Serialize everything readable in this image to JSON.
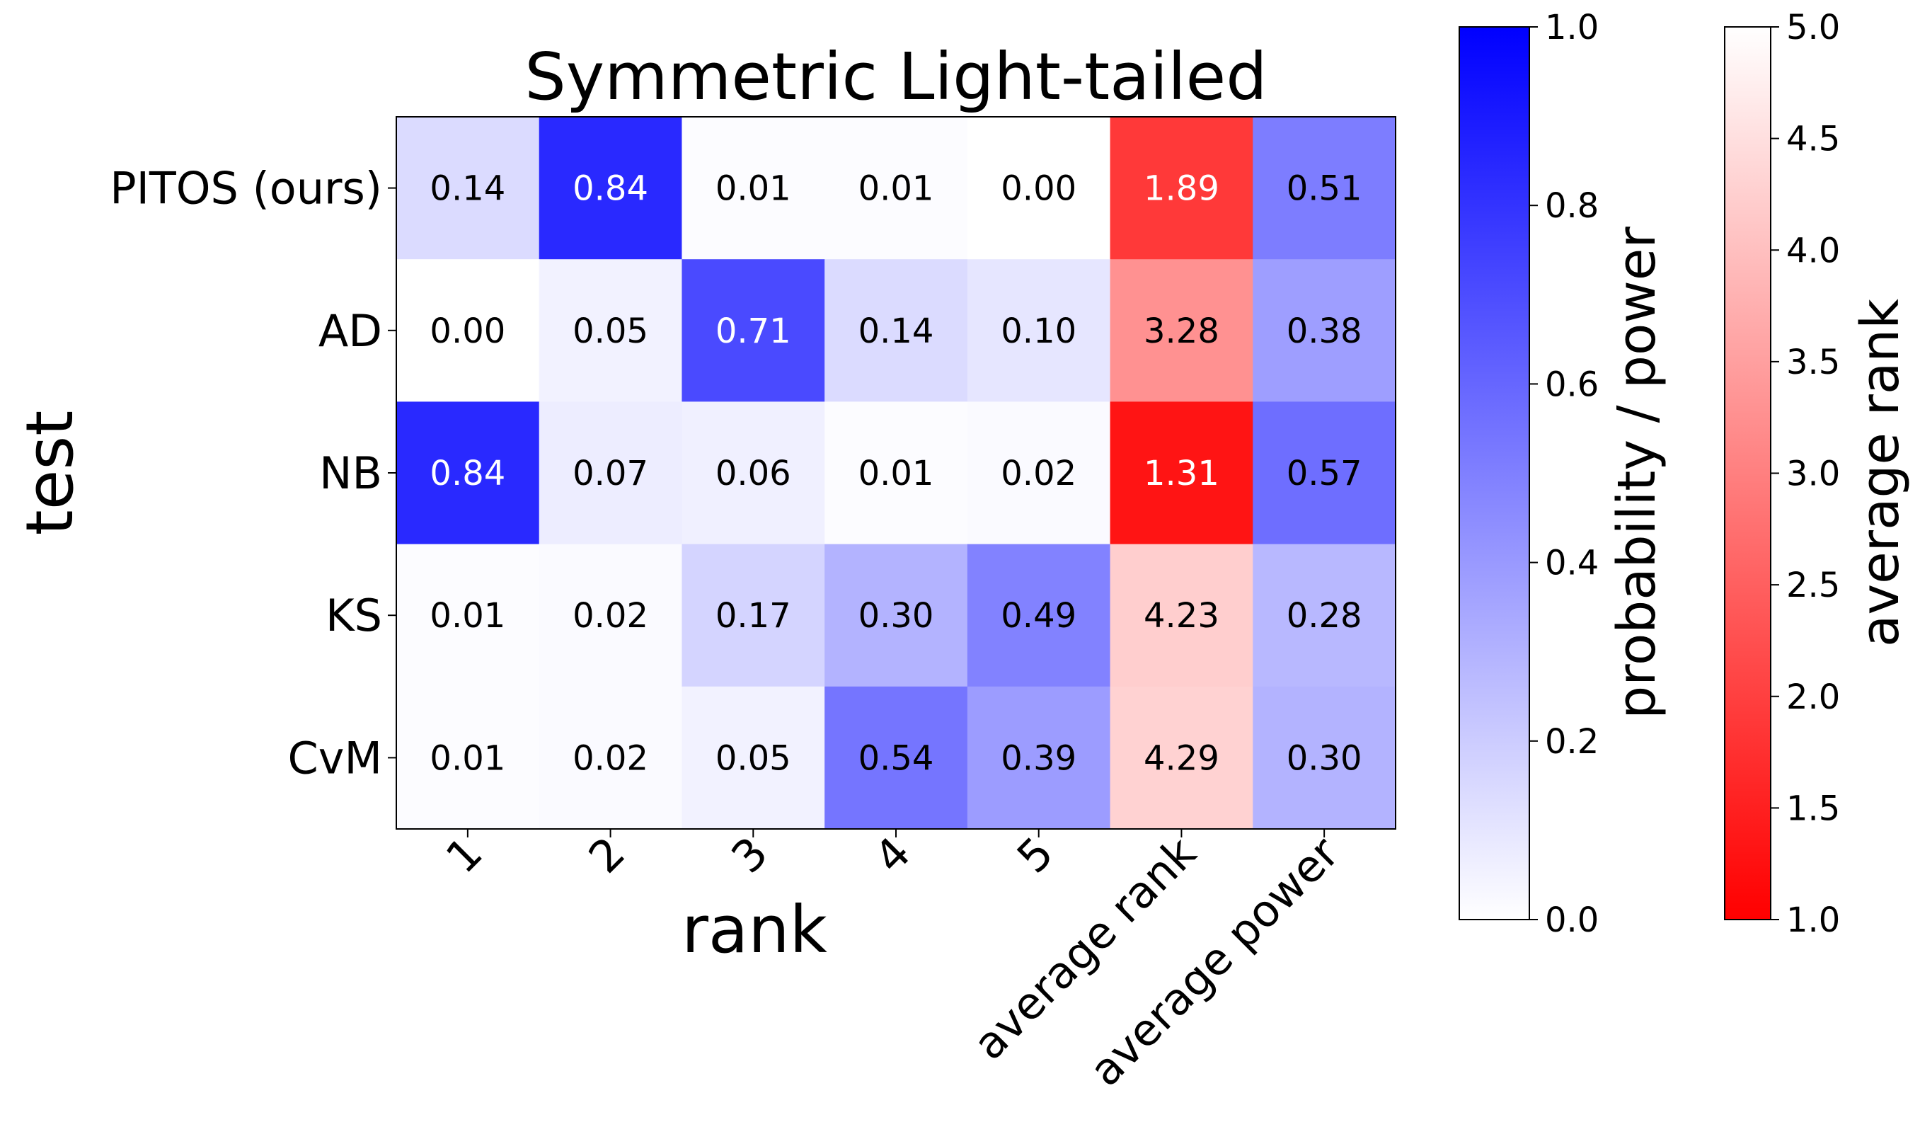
{
  "chart_data": {
    "type": "heatmap",
    "title": "Symmetric Light-tailed",
    "xlabel": "rank",
    "ylabel": "test",
    "columns": [
      "1",
      "2",
      "3",
      "4",
      "5",
      "average rank",
      "average power"
    ],
    "rows": [
      "PITOS (ours)",
      "AD",
      "NB",
      "KS",
      "CvM"
    ],
    "values": [
      [
        "0.14",
        "0.84",
        "0.01",
        "0.01",
        "0.00",
        "1.89",
        "0.51"
      ],
      [
        "0.00",
        "0.05",
        "0.71",
        "0.14",
        "0.10",
        "3.28",
        "0.38"
      ],
      [
        "0.84",
        "0.07",
        "0.06",
        "0.01",
        "0.02",
        "1.31",
        "0.57"
      ],
      [
        "0.01",
        "0.02",
        "0.17",
        "0.30",
        "0.49",
        "4.23",
        "0.28"
      ],
      [
        "0.01",
        "0.02",
        "0.05",
        "0.54",
        "0.39",
        "4.29",
        "0.30"
      ]
    ],
    "column_scale": [
      "blue",
      "blue",
      "blue",
      "blue",
      "blue",
      "red",
      "blue"
    ],
    "colorbars": [
      {
        "name": "blue",
        "label": "probability / power",
        "range": [
          0.0,
          1.0
        ],
        "ticks": [
          "0.0",
          "0.2",
          "0.4",
          "0.6",
          "0.8",
          "1.0"
        ],
        "color_high": "#0000ff",
        "color_low": "#ffffff"
      },
      {
        "name": "red",
        "label": "average rank",
        "range": [
          1.0,
          5.0
        ],
        "ticks": [
          "1.0",
          "1.5",
          "2.0",
          "2.5",
          "3.0",
          "3.5",
          "4.0",
          "4.5",
          "5.0"
        ],
        "color_high": "#ffffff",
        "color_low": "#ff0000"
      }
    ]
  }
}
